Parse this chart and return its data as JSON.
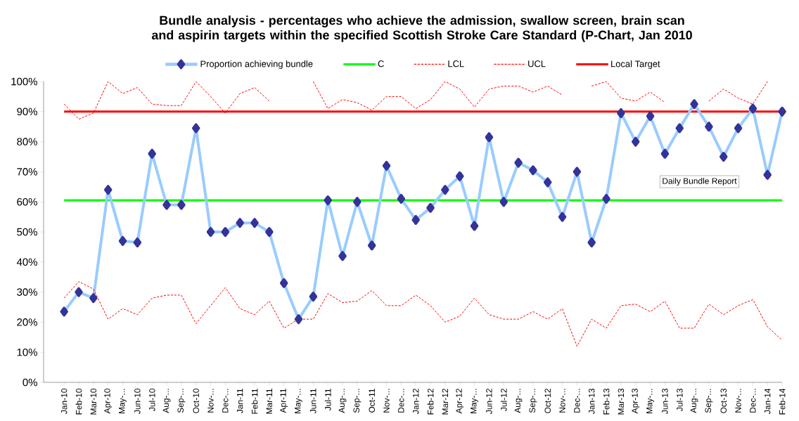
{
  "chart_data": {
    "type": "line",
    "title": "Bundle analysis - percentages who achieve the admission, swallow screen, brain scan and aspirin targets within the specified Scottish Stroke Care Standard (P-Chart, Jan 2010",
    "categories": [
      "Jan-10",
      "Feb-10",
      "Mar-10",
      "Apr-10",
      "May-...",
      "Jun-10",
      "Jul-10",
      "Aug-...",
      "Sep-...",
      "Oct-10",
      "Nov-...",
      "Dec-...",
      "Jan-11",
      "Feb-11",
      "Mar-11",
      "Apr-11",
      "May-...",
      "Jun-11",
      "Jul-11",
      "Aug-...",
      "Sep-...",
      "Oct-11",
      "Nov-...",
      "Dec-...",
      "Jan-12",
      "Feb-12",
      "Mar-12",
      "Apr-12",
      "May-...",
      "Jun-12",
      "Jul-12",
      "Aug-...",
      "Sep-...",
      "Oct-12",
      "Nov-...",
      "Dec-...",
      "Jan-13",
      "Feb-13",
      "Mar-13",
      "Apr-13",
      "May-...",
      "Jun-13",
      "Jul-13",
      "Aug-...",
      "Sep-...",
      "Oct-13",
      "Nov-...",
      "Dec-...",
      "Jan-14",
      "Feb-14"
    ],
    "series": [
      {
        "name": "Proportion achieving bundle",
        "color": "#99ccff",
        "marker": "diamond",
        "line_style": "solid",
        "values": [
          23.5,
          30,
          28,
          64,
          47,
          46.5,
          76,
          59,
          59,
          84.5,
          50,
          50,
          53,
          53,
          50,
          33,
          21,
          28.5,
          60.5,
          42,
          60,
          45.5,
          72,
          61,
          54,
          58,
          64,
          68.5,
          52,
          81.5,
          60,
          73,
          70.5,
          66.5,
          55,
          70,
          46.5,
          61,
          89.5,
          80,
          88.5,
          76,
          84.5,
          92.5,
          85,
          75,
          84.5,
          91,
          69,
          90
        ]
      },
      {
        "name": "LCL",
        "color": "#ff0000",
        "marker": "none",
        "line_style": "dashed",
        "values": [
          28,
          33.5,
          31,
          21,
          24.5,
          22.5,
          28,
          29,
          29,
          19.5,
          25.5,
          31.5,
          24.5,
          22.5,
          27,
          18,
          21,
          21,
          29.5,
          26.5,
          27,
          30.5,
          25.5,
          25.5,
          29,
          25.5,
          20,
          22,
          28,
          22.5,
          21,
          21,
          23.5,
          21,
          24.5,
          12,
          21,
          18,
          25.5,
          26,
          23.5,
          27,
          18,
          18,
          26,
          22.5,
          25.5,
          27.5,
          18.5,
          14
        ]
      },
      {
        "name": "UCL",
        "color": "#ff0000",
        "marker": "none",
        "line_style": "dashed",
        "values": [
          92.5,
          87.5,
          89.5,
          100,
          96,
          98,
          92.5,
          92,
          92,
          100,
          95,
          89.5,
          96,
          98,
          93.5,
          null,
          null,
          100,
          91,
          94,
          93,
          90.5,
          95,
          95,
          91,
          94,
          100,
          97.5,
          91.5,
          97.5,
          98.5,
          98.5,
          96.5,
          98.5,
          95.5,
          null,
          98.5,
          100,
          94.5,
          93.5,
          96.5,
          93,
          null,
          null,
          93.5,
          97.5,
          94.5,
          92.5,
          100,
          null
        ]
      }
    ],
    "ref_lines": [
      {
        "axis": "y",
        "value": 60.5,
        "label": "C",
        "color": "#00ff00"
      },
      {
        "axis": "y",
        "value": 90,
        "label": "Local Target",
        "color": "#ff0000"
      }
    ],
    "annotations": [
      "Daily Bundle Report"
    ],
    "ylim": [
      0,
      100
    ],
    "yticks": [
      {
        "value": 0,
        "label": "0%"
      },
      {
        "value": 10,
        "label": "10%"
      },
      {
        "value": 20,
        "label": "20%"
      },
      {
        "value": 30,
        "label": "30%"
      },
      {
        "value": 40,
        "label": "40%"
      },
      {
        "value": 50,
        "label": "50%"
      },
      {
        "value": 60,
        "label": "60%"
      },
      {
        "value": 70,
        "label": "70%"
      },
      {
        "value": 80,
        "label": "80%"
      },
      {
        "value": 90,
        "label": "90%"
      },
      {
        "value": 100,
        "label": "100%"
      }
    ],
    "grid": false,
    "legend": "top"
  }
}
